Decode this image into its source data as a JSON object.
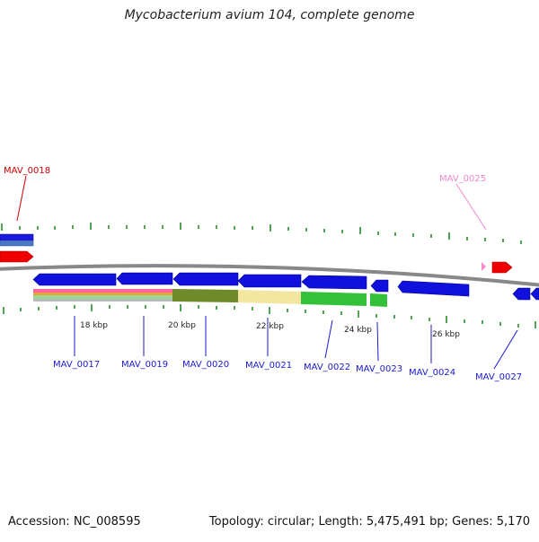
{
  "title": "Mycobacterium avium 104, complete genome",
  "footer": {
    "accession": "Accession: NC_008595",
    "summary": "Topology: circular; Length: 5,475,491 bp; Genes: 5,170"
  },
  "colors": {
    "blue_gene": "#1010dd",
    "red_gene": "#ee0000",
    "pink_gene": "#ff88cc",
    "backbone": "#888888",
    "tick": "#2a8a2a",
    "label_blue": "#1a1ad0",
    "label_red": "#cc0000",
    "label_pink": "#ee88cc"
  },
  "ruler": [
    {
      "label": "18 kbp"
    },
    {
      "label": "20 kbp"
    },
    {
      "label": "22 kbp"
    },
    {
      "label": "24 kbp"
    },
    {
      "label": "26 kbp"
    }
  ],
  "gene_labels": [
    {
      "text": "MAV_0018",
      "color": "red"
    },
    {
      "text": "MAV_0025",
      "color": "pink"
    },
    {
      "text": "MAV_0017",
      "color": "blue"
    },
    {
      "text": "MAV_0019",
      "color": "blue"
    },
    {
      "text": "MAV_0020",
      "color": "blue"
    },
    {
      "text": "MAV_0021",
      "color": "blue"
    },
    {
      "text": "MAV_0022",
      "color": "blue"
    },
    {
      "text": "MAV_0023",
      "color": "blue"
    },
    {
      "text": "MAV_0024",
      "color": "blue"
    },
    {
      "text": "MAV_0027",
      "color": "blue"
    }
  ]
}
